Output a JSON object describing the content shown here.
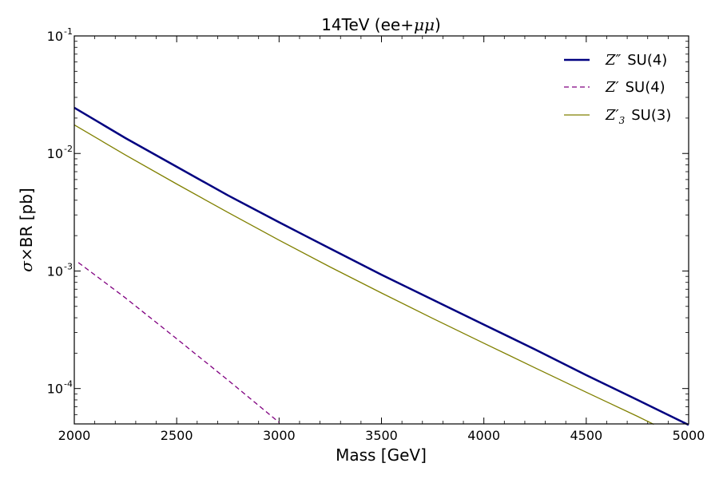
{
  "chart_data": {
    "type": "line",
    "title_parts": {
      "prefix": "14TeV (ee",
      "math": "+μμ",
      "suffix": ")"
    },
    "xlabel": "Mass [GeV]",
    "ylabel_parts": {
      "math": "σ×",
      "text": "BR [pb]"
    },
    "xlim": [
      2000,
      5000
    ],
    "ylim": [
      5e-05,
      0.1
    ],
    "yscale": "log",
    "x_ticks": [
      2000,
      2500,
      3000,
      3500,
      4000,
      4500,
      5000
    ],
    "x_tick_labels": [
      "2000",
      "2500",
      "3000",
      "3500",
      "4000",
      "4500",
      "5000"
    ],
    "y_ticks": [
      {
        "value": 0.1,
        "base": "10",
        "exp": "-1"
      },
      {
        "value": 0.01,
        "base": "10",
        "exp": "-2"
      },
      {
        "value": 0.001,
        "base": "10",
        "exp": "-3"
      },
      {
        "value": 0.0001,
        "base": "10",
        "exp": "-4"
      }
    ],
    "legend_position": "top-right",
    "series": [
      {
        "name": "Z'' SU(4)",
        "legend_math": "Z″",
        "legend_text": "SU(4)",
        "color": "#000080",
        "style": "solid",
        "weight": "thick",
        "x": [
          2000,
          2250,
          2500,
          2750,
          3000,
          3250,
          3500,
          3750,
          4000,
          4250,
          4500,
          4750,
          5000
        ],
        "y": [
          0.0245,
          0.0135,
          0.0077,
          0.0044,
          0.0026,
          0.00155,
          0.00093,
          0.00057,
          0.00035,
          0.000215,
          0.00013,
          8e-05,
          4.9e-05
        ]
      },
      {
        "name": "Z' SU(4)",
        "legend_math": "Z′",
        "legend_text": "SU(4)",
        "color": "#800080",
        "style": "dashed",
        "weight": "thin",
        "x": [
          2020,
          2250,
          2500,
          2750,
          3000
        ],
        "y": [
          0.00118,
          0.00059,
          0.000265,
          0.000118,
          5.15e-05
        ]
      },
      {
        "name": "Z3' SU(3)",
        "legend_math": "Z′",
        "legend_math_sub": "3",
        "legend_text": "SU(3)",
        "color": "#808000",
        "style": "solid",
        "weight": "thin",
        "x": [
          2000,
          2250,
          2500,
          2750,
          3000,
          3250,
          3500,
          3750,
          4000,
          4250,
          4500,
          4750,
          4830
        ],
        "y": [
          0.0175,
          0.0097,
          0.0055,
          0.00315,
          0.00183,
          0.00108,
          0.00065,
          0.000395,
          0.000243,
          0.00015,
          9.3e-05,
          5.8e-05,
          4.95e-05
        ]
      }
    ]
  }
}
